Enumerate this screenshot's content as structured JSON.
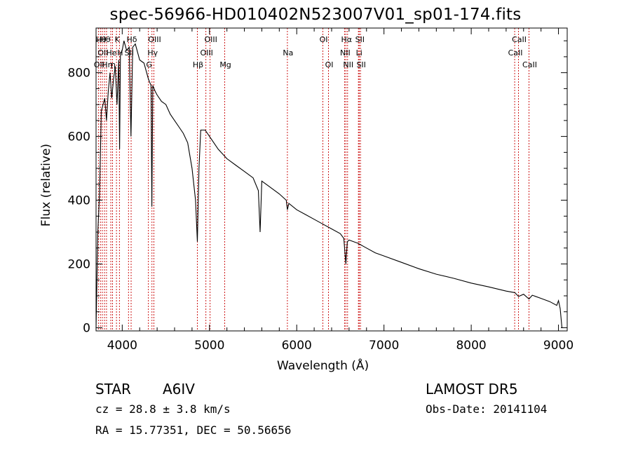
{
  "chart_data": {
    "type": "line",
    "title": "spec-56966-HD010402N523007V01_sp01-174.fits",
    "xlabel": "Wavelength (Å)",
    "ylabel": "Flux (relative)",
    "xlim": [
      3700,
      9100
    ],
    "ylim": [
      -10,
      940
    ],
    "xticks": [
      "4000",
      "5000",
      "6000",
      "7000",
      "8000",
      "9000"
    ],
    "yticks": [
      "0",
      "200",
      "400",
      "600",
      "800"
    ],
    "series": [
      {
        "x": [
          3700,
          3720,
          3740,
          3760,
          3780,
          3800,
          3820,
          3840,
          3860,
          3880,
          3900,
          3920,
          3940,
          3960,
          3970,
          3980,
          4000,
          4020,
          4050,
          4080,
          4100,
          4120,
          4150,
          4200,
          4250,
          4300,
          4330,
          4340,
          4350,
          4380,
          4400,
          4450,
          4500,
          4550,
          4600,
          4650,
          4700,
          4750,
          4800,
          4840,
          4861,
          4880,
          4900,
          4950,
          5000,
          5050,
          5100,
          5200,
          5300,
          5400,
          5500,
          5560,
          5580,
          5600,
          5700,
          5800,
          5880,
          5893,
          5910,
          6000,
          6100,
          6200,
          6300,
          6400,
          6500,
          6540,
          6563,
          6580,
          6600,
          6700,
          6800,
          6900,
          7000,
          7200,
          7400,
          7600,
          7800,
          8000,
          8200,
          8400,
          8500,
          8542,
          8600,
          8662,
          8700,
          8800,
          8900,
          8980,
          9000,
          9020,
          9040,
          9060
        ],
        "y": [
          0,
          300,
          420,
          680,
          700,
          720,
          650,
          740,
          800,
          720,
          780,
          820,
          700,
          840,
          560,
          860,
          870,
          900,
          870,
          880,
          600,
          880,
          890,
          840,
          830,
          780,
          760,
          380,
          760,
          740,
          730,
          710,
          700,
          670,
          650,
          630,
          610,
          580,
          500,
          400,
          270,
          500,
          620,
          620,
          600,
          580,
          560,
          530,
          510,
          490,
          470,
          430,
          300,
          460,
          440,
          420,
          400,
          370,
          390,
          370,
          355,
          340,
          325,
          310,
          295,
          280,
          200,
          270,
          275,
          265,
          250,
          235,
          225,
          205,
          185,
          168,
          155,
          140,
          128,
          115,
          110,
          98,
          105,
          90,
          102,
          92,
          82,
          70,
          85,
          60,
          0,
          0
        ]
      }
    ],
    "lines": [
      {
        "x": 3727,
        "row": 2,
        "label": "OII"
      },
      {
        "x": 3750,
        "row": 0,
        "label": "Hθ"
      },
      {
        "x": 3772,
        "row": 1,
        "label": "OII"
      },
      {
        "x": 3797,
        "row": 0,
        "label": "Hθ"
      },
      {
        "x": 3820,
        "row": 2,
        "label": "Hη"
      },
      {
        "x": 3869,
        "row": 1,
        "label": "He"
      },
      {
        "x": 3889,
        "row": 2,
        "label": "η"
      },
      {
        "x": 3934,
        "row": 0,
        "label": "K"
      },
      {
        "x": 3968,
        "row": 1,
        "label": "H"
      },
      {
        "x": 4072,
        "row": 1,
        "label": "SII"
      },
      {
        "x": 4102,
        "row": 0,
        "label": "Hδ"
      },
      {
        "x": 4300,
        "row": 2,
        "label": "G"
      },
      {
        "x": 4341,
        "row": 1,
        "label": "Hγ"
      },
      {
        "x": 4363,
        "row": 0,
        "label": "OIII"
      },
      {
        "x": 4861,
        "row": 2,
        "label": "Hβ"
      },
      {
        "x": 4959,
        "row": 1,
        "label": "OIII"
      },
      {
        "x": 5007,
        "row": 0,
        "label": "OIII"
      },
      {
        "x": 5175,
        "row": 2,
        "label": "Mg"
      },
      {
        "x": 5893,
        "row": 1,
        "label": "Na"
      },
      {
        "x": 6300,
        "row": 0,
        "label": "OI"
      },
      {
        "x": 6364,
        "row": 2,
        "label": "OI"
      },
      {
        "x": 6548,
        "row": 1,
        "label": "NII"
      },
      {
        "x": 6563,
        "row": 0,
        "label": "Hα"
      },
      {
        "x": 6583,
        "row": 2,
        "label": "NII"
      },
      {
        "x": 6707,
        "row": 1,
        "label": "Li"
      },
      {
        "x": 6716,
        "row": 0,
        "label": "SII"
      },
      {
        "x": 6731,
        "row": 2,
        "label": "SII"
      },
      {
        "x": 8498,
        "row": 1,
        "label": "CaII"
      },
      {
        "x": 8542,
        "row": 0,
        "label": "CaII"
      },
      {
        "x": 8662,
        "row": 2,
        "label": "CaII"
      }
    ]
  },
  "info": {
    "class": "STAR",
    "subclass": "A6IV",
    "survey": "LAMOST DR5",
    "cz": "cz = 28.8 ± 3.8 km/s",
    "obs_date": "Obs-Date: 20141104",
    "coords": "RA =  15.77351, DEC =  50.56656"
  },
  "colors": {
    "spectrum": "#000000",
    "line_markers": "#c80000"
  }
}
